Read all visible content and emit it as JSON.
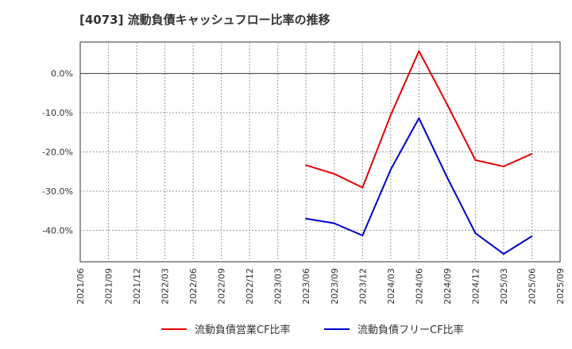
{
  "chart_data": {
    "type": "line",
    "title": "[4073]  流動負債キャッシュフロー比率の推移",
    "xlabel": "",
    "ylabel": "",
    "x_ticks": [
      "2021/06",
      "2021/09",
      "2021/12",
      "2022/03",
      "2022/06",
      "2022/09",
      "2022/12",
      "2023/03",
      "2023/06",
      "2023/09",
      "2023/12",
      "2024/03",
      "2024/06",
      "2024/09",
      "2024/12",
      "2025/03",
      "2025/06",
      "2025/09"
    ],
    "y_ticks": [
      0,
      -10,
      -20,
      -30,
      -40
    ],
    "y_tick_labels": [
      "0.0%",
      "-10.0%",
      "-20.0%",
      "-30.0%",
      "-40.0%"
    ],
    "ylim": [
      -48,
      8
    ],
    "grid": true,
    "legend_position": "bottom",
    "series": [
      {
        "name": "流動負債営業CF比率",
        "color": "#e60000",
        "x": [
          "2023/06",
          "2023/09",
          "2023/12",
          "2024/03",
          "2024/06",
          "2024/09",
          "2024/12",
          "2025/03",
          "2025/06"
        ],
        "values": [
          -23.4,
          -25.6,
          -29.1,
          -10.6,
          5.7,
          -7.9,
          -22.1,
          -23.7,
          -20.5
        ]
      },
      {
        "name": "流動負債フリーCF比率",
        "color": "#0000cc",
        "x": [
          "2023/06",
          "2023/09",
          "2023/12",
          "2024/03",
          "2024/06",
          "2024/09",
          "2024/12",
          "2025/03",
          "2025/06"
        ],
        "values": [
          -37.0,
          -38.2,
          -41.3,
          -24.5,
          -11.4,
          -26.5,
          -40.7,
          -46.0,
          -41.5
        ]
      }
    ]
  }
}
